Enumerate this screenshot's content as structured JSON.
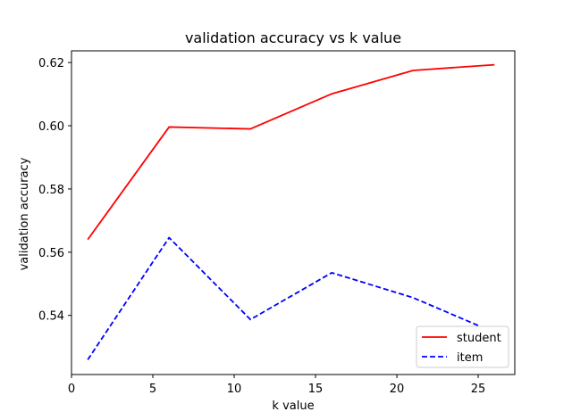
{
  "chart_data": {
    "type": "line",
    "title": "validation accuracy vs k value",
    "xlabel": "k value",
    "ylabel": "validation accuracy",
    "xlim": [
      0,
      27.25
    ],
    "ylim": [
      0.5213,
      0.6237
    ],
    "x_ticks": [
      0,
      5,
      10,
      15,
      20,
      25
    ],
    "y_ticks": [
      0.54,
      0.56,
      0.58,
      0.6,
      0.62
    ],
    "y_tick_labels": [
      "0.54",
      "0.56",
      "0.58",
      "0.60",
      "0.62"
    ],
    "grid": false,
    "legend_position": "lower-right",
    "series": [
      {
        "name": "student",
        "color": "#ff0000",
        "dash": "solid",
        "x": [
          1,
          6,
          11,
          16,
          21,
          26
        ],
        "y": [
          0.564,
          0.5996,
          0.599,
          0.6101,
          0.6175,
          0.6193
        ]
      },
      {
        "name": "item",
        "color": "#0000ff",
        "dash": "dashed",
        "x": [
          1,
          6,
          11,
          16,
          21,
          26
        ],
        "y": [
          0.526,
          0.5646,
          0.5387,
          0.5535,
          0.5456,
          0.5346
        ]
      }
    ]
  }
}
